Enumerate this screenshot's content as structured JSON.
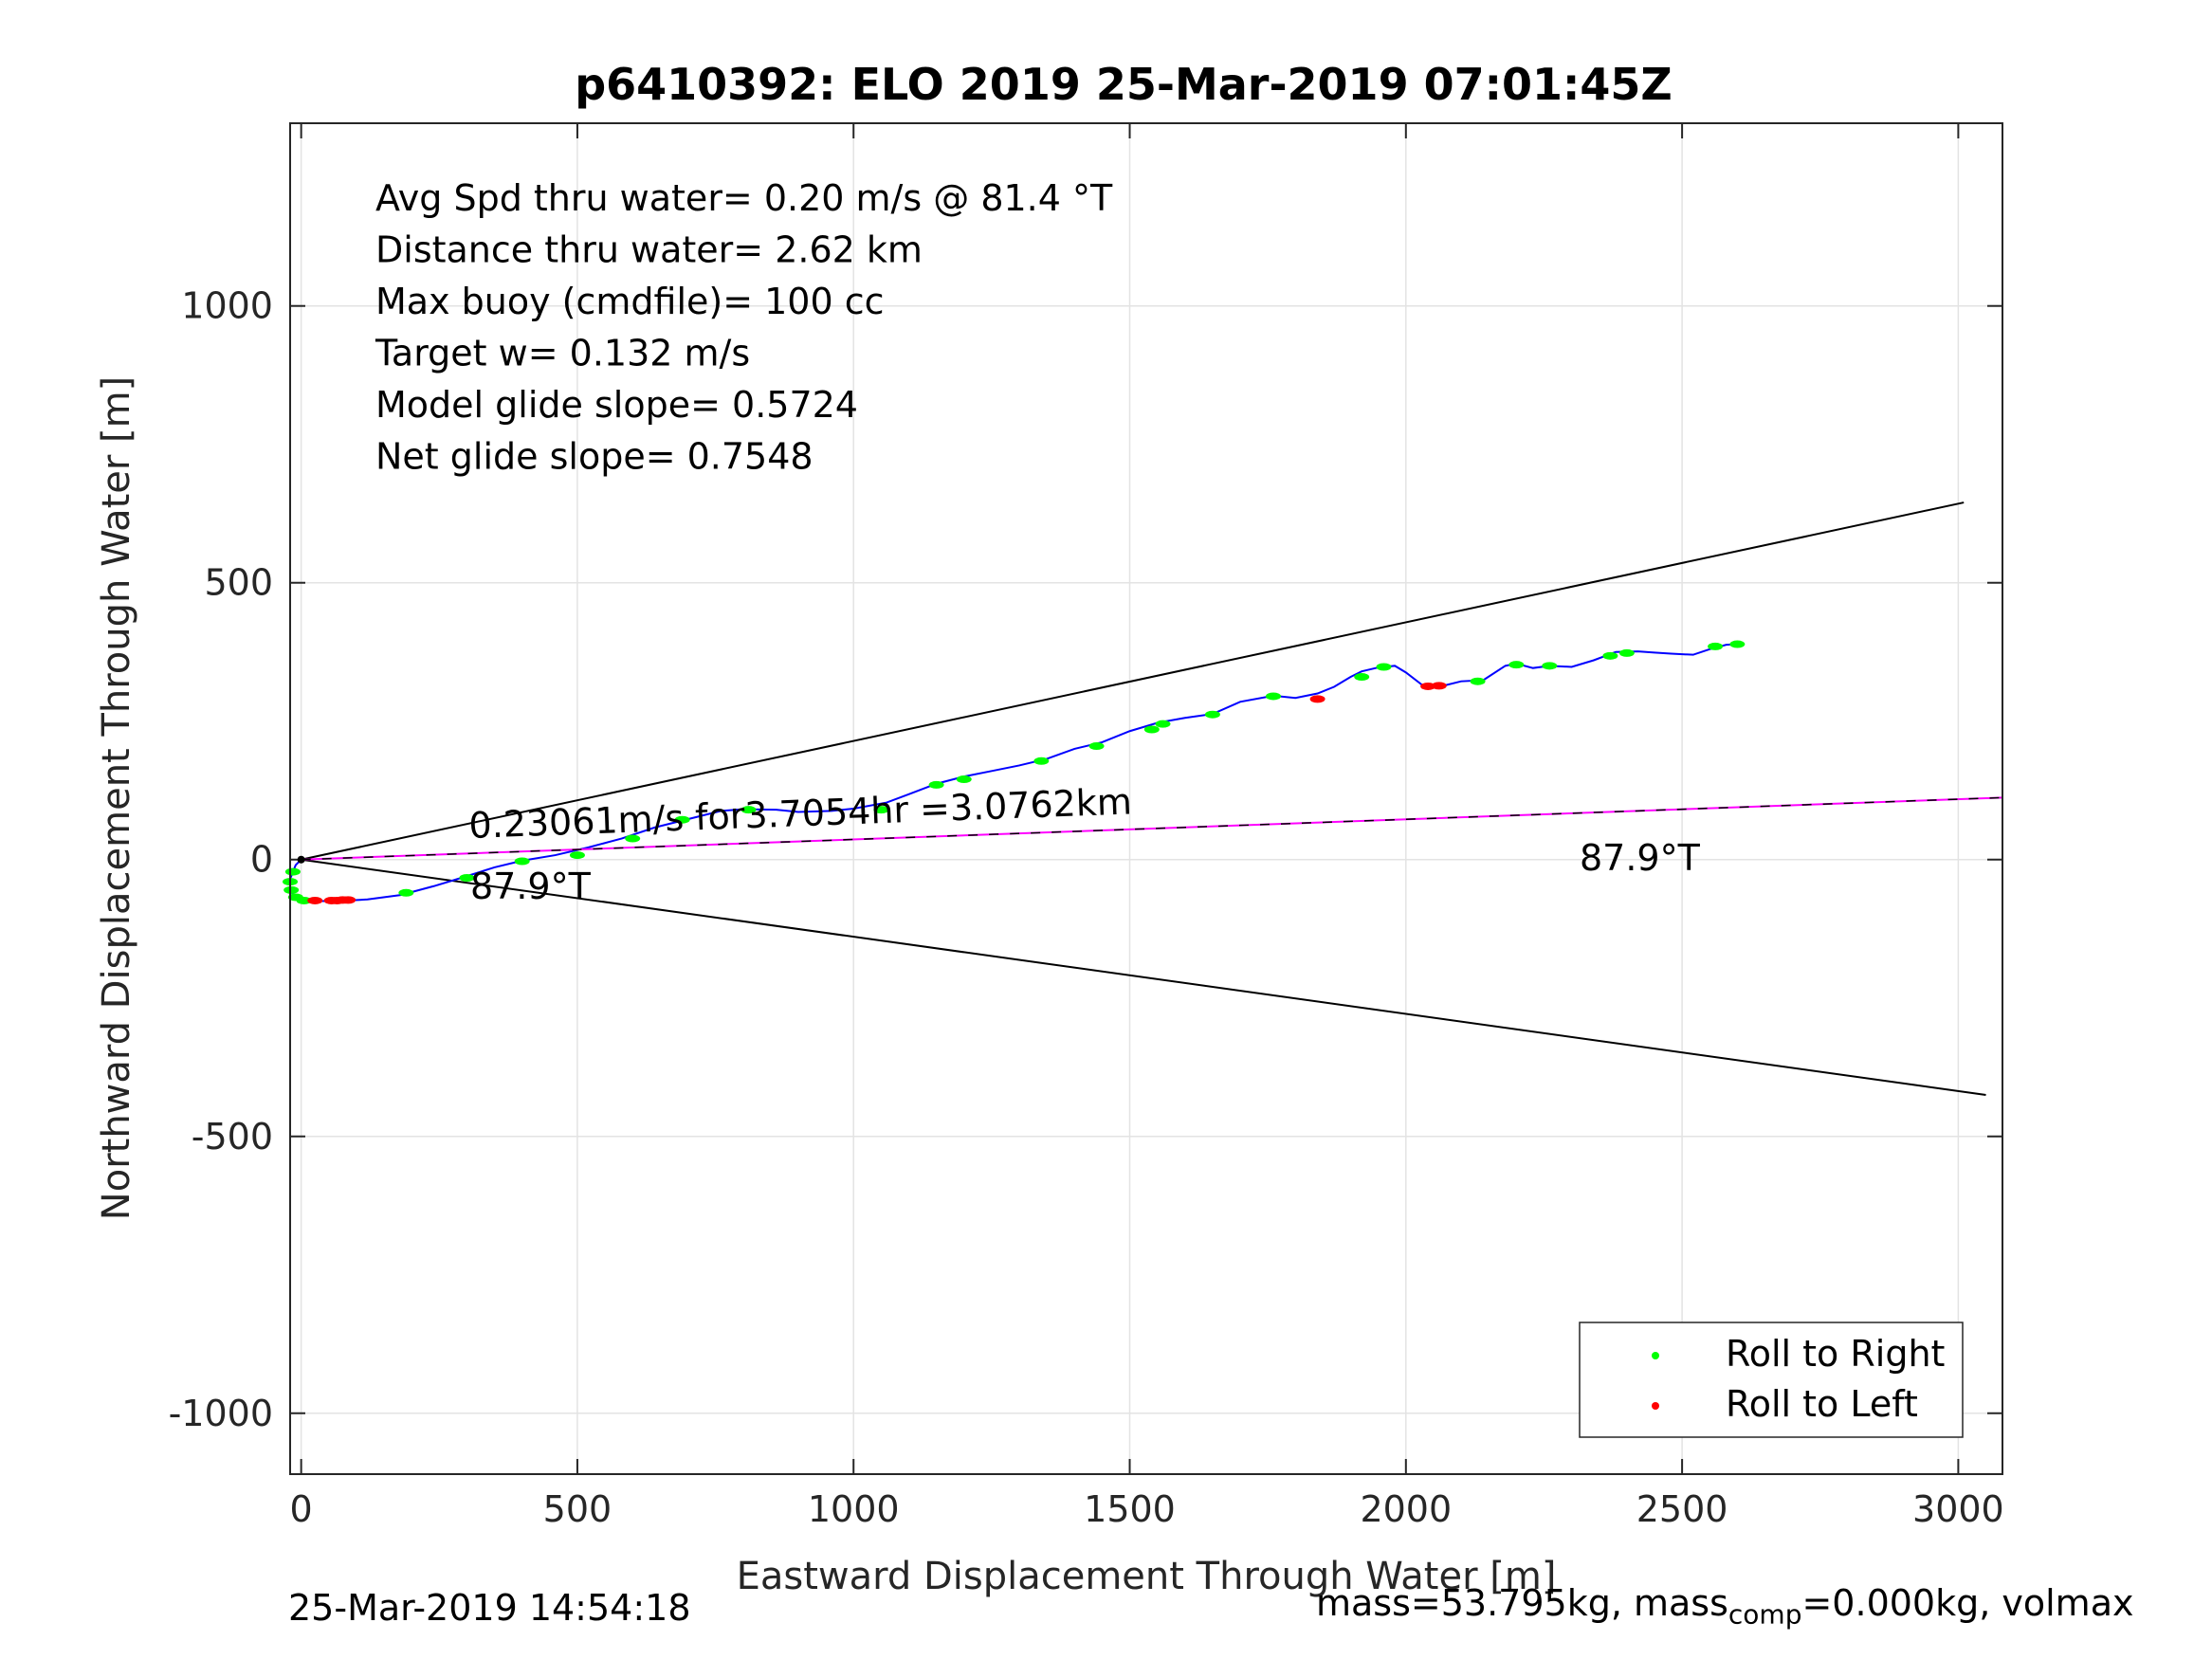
{
  "chart_data": {
    "type": "line",
    "title": "p6410392: ELO 2019 25-Mar-2019 07:01:45Z",
    "xlabel": "Eastward Displacement Through Water [m]",
    "ylabel": "Northward Displacement Through Water [m]",
    "xlim": [
      -20,
      3080
    ],
    "ylim": [
      -1110,
      1330
    ],
    "xticks": [
      0,
      500,
      1000,
      1500,
      2000,
      2500,
      3000
    ],
    "xtick_labels": [
      "0",
      "500",
      "1000",
      "1500",
      "2000",
      "2500",
      "3000"
    ],
    "yticks": [
      -1000,
      -500,
      0,
      500,
      1000
    ],
    "ytick_labels": [
      "-1000",
      "-500",
      "0",
      "500",
      "1000"
    ],
    "grid": true,
    "info_lines": [
      "Avg Spd thru water=  0.20 m/s @  81.4 °T",
      "Distance thru water=  2.62 km",
      "Max buoy (cmdfile)= 100 cc",
      "Target w= 0.132 m/s",
      "Model glide slope= 0.5724",
      "Net glide slope= 0.7548"
    ],
    "annotations": {
      "current_label": "0.23061m/s for3.7054hr =3.0762km",
      "heading_near": "87.9°T",
      "heading_far": "87.9°T"
    },
    "legend": {
      "placement": "bottom-right",
      "entries": [
        {
          "label": "Roll to Right",
          "color": "#00ff00"
        },
        {
          "label": "Roll to Left",
          "color": "#ff0000"
        }
      ]
    },
    "colors": {
      "track": "#0000ff",
      "current_vector": "#ff00ff",
      "cone": "#000000",
      "roll_right": "#00ff00",
      "roll_left": "#ff0000"
    },
    "series": [
      {
        "name": "",
        "kind": "track",
        "x": [
          0,
          -10,
          -20,
          -20,
          -10,
          10,
          40,
          80,
          120,
          180,
          240,
          290,
          350,
          400,
          460,
          520,
          580,
          640,
          700,
          760,
          800,
          860,
          900,
          960,
          1000,
          1060,
          1100,
          1150,
          1200,
          1250,
          1300,
          1350,
          1400,
          1450,
          1500,
          1550,
          1600,
          1650,
          1700,
          1760,
          1800,
          1840,
          1870,
          1900,
          1920,
          1950,
          1980,
          2000,
          2030,
          2060,
          2100,
          2140,
          2180,
          2200,
          2230,
          2260,
          2300,
          2340,
          2380,
          2420,
          2450,
          2480,
          2520,
          2550,
          2580,
          2600
        ],
        "y": [
          0,
          -10,
          -35,
          -55,
          -70,
          -75,
          -75,
          -74,
          -72,
          -64,
          -48,
          -33,
          -14,
          -2,
          8,
          22,
          38,
          58,
          73,
          88,
          91,
          90,
          86,
          88,
          92,
          103,
          118,
          137,
          150,
          160,
          170,
          182,
          200,
          212,
          232,
          247,
          256,
          263,
          285,
          296,
          292,
          300,
          312,
          330,
          340,
          347,
          350,
          338,
          315,
          312,
          322,
          324,
          350,
          354,
          346,
          350,
          348,
          360,
          375,
          376,
          374,
          372,
          370,
          380,
          388,
          389
        ]
      },
      {
        "name": "Roll to Right",
        "kind": "points",
        "x": [
          -15,
          -20,
          -18,
          -10,
          5,
          190,
          300,
          400,
          500,
          600,
          690,
          810,
          1050,
          1150,
          1200,
          1340,
          1440,
          1540,
          1560,
          1650,
          1760,
          1920,
          1960,
          2130,
          2200,
          2260,
          2370,
          2400,
          2560,
          2600
        ],
        "y": [
          -22,
          -40,
          -55,
          -68,
          -74,
          -60,
          -33,
          -3,
          8,
          38,
          72,
          90,
          90,
          135,
          145,
          178,
          205,
          235,
          245,
          262,
          295,
          330,
          348,
          322,
          352,
          350,
          368,
          373,
          385,
          389
        ]
      },
      {
        "name": "Roll to Left",
        "kind": "points",
        "x": [
          25,
          55,
          65,
          75,
          85,
          1840,
          2040,
          2060
        ],
        "y": [
          -74,
          -74,
          -74,
          -73,
          -73,
          290,
          313,
          314
        ]
      },
      {
        "name": "",
        "kind": "cone-upper",
        "x": [
          0,
          3010
        ],
        "y": [
          0,
          645
        ]
      },
      {
        "name": "",
        "kind": "cone-lower",
        "x": [
          0,
          3050
        ],
        "y": [
          0,
          -425
        ]
      },
      {
        "name": "",
        "kind": "current-vector",
        "x": [
          0,
          3080
        ],
        "y": [
          0,
          112
        ]
      }
    ]
  },
  "footer": {
    "timestamp": "25-Mar-2019 14:54:18",
    "mass_prefix": "mass=53.795kg, mass",
    "mass_sub": "comp",
    "mass_suffix": "=0.000kg, volmax"
  }
}
